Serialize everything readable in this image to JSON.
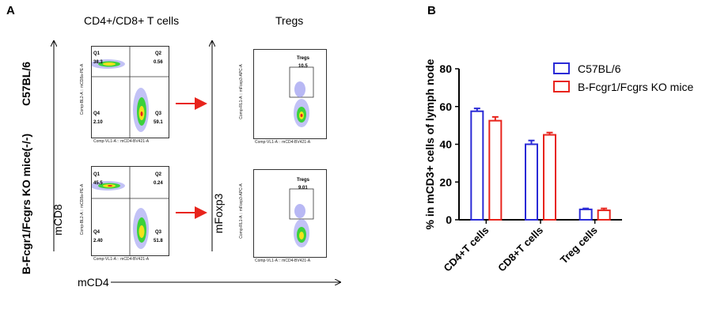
{
  "panel_a": {
    "letter": "A",
    "col1_title": "CD4+/CD8+ T cells",
    "col2_title": "Tregs",
    "row1_label": "C57BL/6",
    "row2_label": "B-Fcgr1/Fcgrs KO mice(-/-)",
    "ylabel_cd8": "mCD8",
    "ylabel_foxp3": "mFoxp3",
    "xlabel_cd4": "mCD4",
    "plots": [
      {
        "q1_label": "Q1",
        "q1_value": "38.3",
        "q2_label": "Q2",
        "q2_value": "0.56",
        "q3_label": "Q3",
        "q3_value": "59.1",
        "q4_label": "Q4",
        "q4_value": "2.10",
        "x_axis": "Comp-VL1-A :: mCD4-BV421-A",
        "y_axis": "Comp-BL2-A :: mCD8a-PE-A"
      },
      {
        "gate_label": "Tregs",
        "gate_value": "10.5",
        "x_axis": "Comp-VL1-A :: mCD4-BV421-A",
        "y_axis": "Comp-RL1-A :: mFoxp3-APC-A"
      },
      {
        "q1_label": "Q1",
        "q1_value": "45.5",
        "q2_label": "Q2",
        "q2_value": "0.24",
        "q3_label": "Q3",
        "q3_value": "51.8",
        "q4_label": "Q4",
        "q4_value": "2.40",
        "x_axis": "Comp-VL1-A :: mCD4-BV421-A",
        "y_axis": "Comp-BL2-A :: mCD8a-PE-A"
      },
      {
        "gate_label": "Tregs",
        "gate_value": "9.01",
        "x_axis": "Comp-VL1-A :: mCD4-BV421-A",
        "y_axis": "Comp-RL1-A :: mFoxp3-APC-A"
      }
    ],
    "arrow_color": "#e8241c"
  },
  "panel_b": {
    "letter": "B"
  },
  "chart_data": {
    "type": "bar",
    "categories": [
      "CD4+T cells",
      "CD8+T cells",
      "Treg cells"
    ],
    "series": [
      {
        "name": "C57BL/6",
        "color": "#2a2ad6",
        "values": [
          57.5,
          40,
          5.5
        ],
        "errors": [
          1.5,
          2,
          0.5
        ]
      },
      {
        "name": "B-Fcgr1/Fcgrs KO mice",
        "color": "#e8241c",
        "values": [
          52.5,
          45,
          5
        ],
        "errors": [
          2,
          1.2,
          1
        ]
      }
    ],
    "ylabel": "% in mCD3+ cells of lymph node",
    "ylim": [
      0,
      80
    ],
    "yticks": [
      0,
      20,
      40,
      60,
      80
    ],
    "legend_position": "top-right",
    "grid": false
  }
}
